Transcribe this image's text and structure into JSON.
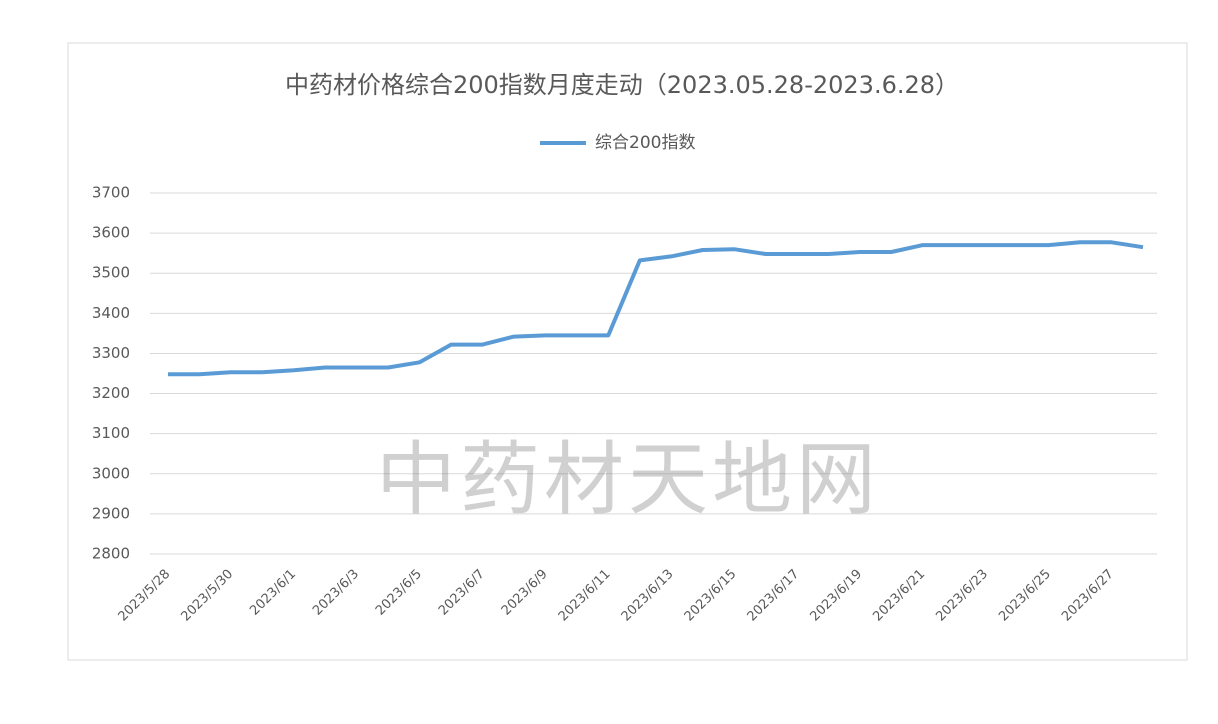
{
  "chart_data": {
    "type": "line",
    "title": "中药材价格综合200指数月度走动（2023.05.28-2023.6.28）",
    "watermark": "中药材天地网",
    "categories": [
      "2023/5/28",
      null,
      "2023/5/30",
      null,
      "2023/6/1",
      null,
      "2023/6/3",
      null,
      "2023/6/5",
      null,
      "2023/6/7",
      null,
      "2023/6/9",
      null,
      "2023/6/11",
      null,
      "2023/6/13",
      null,
      "2023/6/15",
      null,
      "2023/6/17",
      null,
      "2023/6/19",
      null,
      "2023/6/21",
      null,
      "2023/6/23",
      null,
      "2023/6/25",
      null,
      "2023/6/27",
      null
    ],
    "series": [
      {
        "name": "综合200指数",
        "color": "#5b9bd5",
        "values": [
          3248,
          3248,
          3253,
          3253,
          3258,
          3265,
          3265,
          3265,
          3278,
          3322,
          3322,
          3342,
          3345,
          3345,
          3345,
          3532,
          3542,
          3558,
          3560,
          3548,
          3548,
          3548,
          3553,
          3553,
          3570,
          3570,
          3570,
          3570,
          3570,
          3577,
          3577,
          3565
        ]
      }
    ],
    "ylim": [
      2800,
      3700
    ],
    "yticks": [
      2800,
      2900,
      3000,
      3100,
      3200,
      3300,
      3400,
      3500,
      3600,
      3700
    ],
    "grid": true,
    "legend": "top"
  }
}
